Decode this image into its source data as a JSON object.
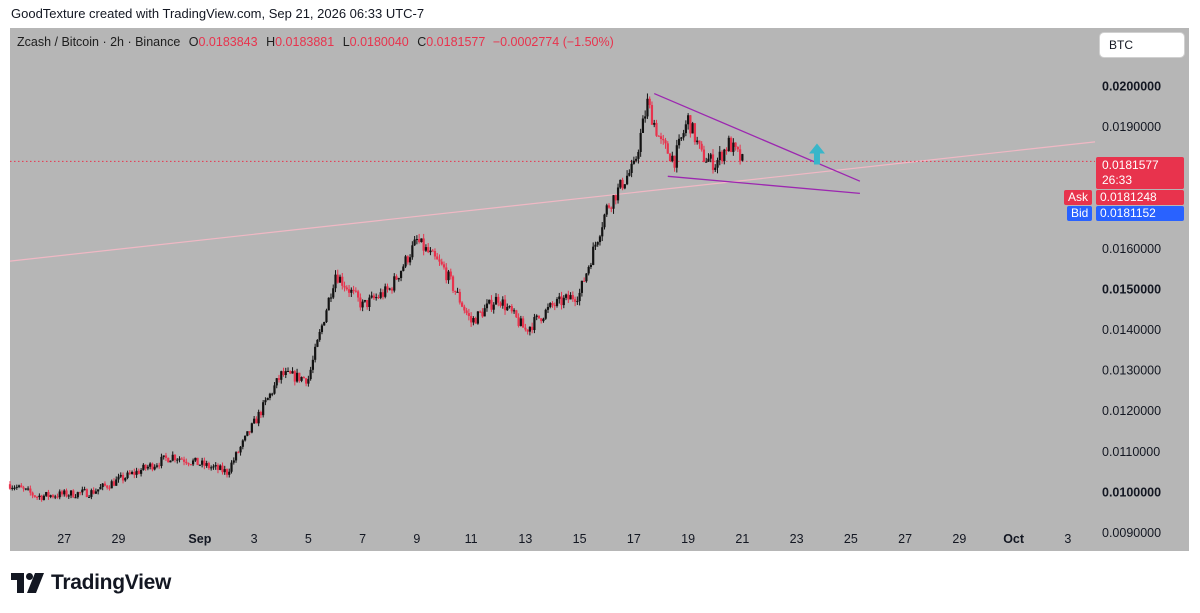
{
  "header": {
    "caption": "GoodTexture created with TradingView.com, Sep 21, 2026 06:33 UTC-7"
  },
  "legend": {
    "symbol": "Zcash / Bitcoin · 2h · Binance",
    "o_label": "O",
    "o_value": "0.0183843",
    "h_label": "H",
    "h_value": "0.0183881",
    "l_label": "L",
    "l_value": "0.0180040",
    "c_label": "C",
    "c_value": "0.0181577",
    "change": "−0.0002774 (−1.50%)"
  },
  "symbol_box": {
    "label": "BTC"
  },
  "price_tags": {
    "last_price": "0.0181577",
    "countdown": "26:33",
    "ask_label": "Ask",
    "ask_value": "0.0181248",
    "bid_label": "Bid",
    "bid_value": "0.0181152"
  },
  "footer": {
    "brand": "TradingView"
  },
  "colors": {
    "background": "#b6b6b6",
    "bull": "#131313",
    "bear": "#e8334d",
    "trendline": "#f0b8c4",
    "wedge": "#9c27b0",
    "arrow": "#39b6c9",
    "ask": "#e8334d",
    "bid": "#2962ff"
  },
  "chart_data": {
    "type": "candlestick",
    "title": "Zcash / Bitcoin · 2h · Binance",
    "x_ticks": [
      "27",
      "29",
      "Sep",
      "3",
      "5",
      "7",
      "9",
      "11",
      "13",
      "15",
      "17",
      "19",
      "21",
      "23",
      "25",
      "27",
      "29",
      "Oct",
      "3"
    ],
    "x_tick_dates": [
      "2026-08-27",
      "2026-08-29",
      "2026-09-01",
      "2026-09-03",
      "2026-09-05",
      "2026-09-07",
      "2026-09-09",
      "2026-09-11",
      "2026-09-13",
      "2026-09-15",
      "2026-09-17",
      "2026-09-19",
      "2026-09-21",
      "2026-09-23",
      "2026-09-25",
      "2026-09-27",
      "2026-09-29",
      "2026-10-01",
      "2026-10-03"
    ],
    "xlim": [
      "2026-08-25",
      "2026-10-04"
    ],
    "y_ticks": [
      "0.0090000",
      "0.0100000",
      "0.0110000",
      "0.0120000",
      "0.0130000",
      "0.0140000",
      "0.0150000",
      "0.0160000",
      "0.0190000",
      "0.0200000"
    ],
    "bold_y_ticks": [
      "0.0100000",
      "0.0150000",
      "0.0200000"
    ],
    "ylim": [
      0.0088,
      0.0212
    ],
    "last_price": 0.0181577,
    "key_points": [
      {
        "date": "2026-08-25",
        "close": 0.0102
      },
      {
        "date": "2026-08-26",
        "close": 0.0099
      },
      {
        "date": "2026-08-28",
        "close": 0.01
      },
      {
        "date": "2026-08-31",
        "close": 0.0109
      },
      {
        "date": "2026-09-02",
        "close": 0.0105
      },
      {
        "date": "2026-09-03",
        "close": 0.0117
      },
      {
        "date": "2026-09-04",
        "close": 0.0129
      },
      {
        "date": "2026-09-05",
        "close": 0.0128
      },
      {
        "date": "2026-09-06",
        "close": 0.0154
      },
      {
        "date": "2026-09-07",
        "close": 0.0146
      },
      {
        "date": "2026-09-08",
        "close": 0.015
      },
      {
        "date": "2026-09-09",
        "close": 0.0162
      },
      {
        "date": "2026-09-10",
        "close": 0.0155
      },
      {
        "date": "2026-09-11",
        "close": 0.0142
      },
      {
        "date": "2026-09-12",
        "close": 0.0148
      },
      {
        "date": "2026-09-13",
        "close": 0.014
      },
      {
        "date": "2026-09-14",
        "close": 0.0146
      },
      {
        "date": "2026-09-15",
        "close": 0.0149
      },
      {
        "date": "2026-09-16",
        "close": 0.017
      },
      {
        "date": "2026-09-16T18:00",
        "close": 0.0178
      },
      {
        "date": "2026-09-17",
        "close": 0.018
      },
      {
        "date": "2026-09-17T12:00",
        "close": 0.0196
      },
      {
        "date": "2026-09-18",
        "close": 0.0186
      },
      {
        "date": "2026-09-18T12:00",
        "close": 0.0182
      },
      {
        "date": "2026-09-19",
        "close": 0.0192
      },
      {
        "date": "2026-09-19T12:00",
        "close": 0.0183
      },
      {
        "date": "2026-09-20",
        "close": 0.0181
      },
      {
        "date": "2026-09-20T12:00",
        "close": 0.0186
      },
      {
        "date": "2026-09-21",
        "close": 0.0181577
      }
    ],
    "overlays": {
      "rising_trendline": {
        "from": {
          "date": "2026-08-25",
          "price": 0.0157
        },
        "to": {
          "date": "2026-10-04",
          "price": 0.01864
        }
      },
      "wedge_upper": {
        "from": {
          "date": "2026-09-17T18:00",
          "price": 0.01983
        },
        "to": {
          "date": "2026-09-25T08:00",
          "price": 0.01767
        }
      },
      "wedge_lower": {
        "from": {
          "date": "2026-09-18T06:00",
          "price": 0.01779
        },
        "to": {
          "date": "2026-09-25T08:00",
          "price": 0.01737
        }
      },
      "price_line": 0.0181577,
      "arrow": {
        "date": "2026-09-23T18:00",
        "price": 0.0186,
        "direction": "up"
      }
    }
  }
}
